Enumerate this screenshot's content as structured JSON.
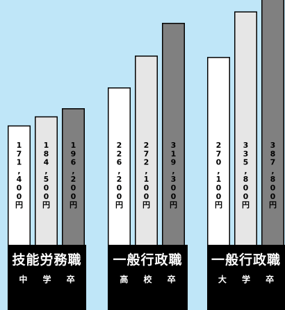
{
  "chart_data": {
    "type": "bar",
    "categories": [
      {
        "title": "技能労務職",
        "subtitle": "中 学 卒"
      },
      {
        "title": "一般行政職",
        "subtitle": "高 校 卒"
      },
      {
        "title": "一般行政職",
        "subtitle": "大 学 卒"
      }
    ],
    "series": [
      {
        "fill": "#ffffff",
        "values": [
          171400,
          226200,
          270100
        ],
        "labels": [
          "171,400円",
          "226,200円",
          "270,100円"
        ]
      },
      {
        "fill": "#e6e6e6",
        "values": [
          184500,
          272100,
          335800
        ],
        "labels": [
          "184,500円",
          "272,100円",
          "335,800円"
        ]
      },
      {
        "fill": "#808080",
        "values": [
          196200,
          319300,
          387800
        ],
        "labels": [
          "196,200円",
          "319,300円",
          "387,800円"
        ]
      }
    ],
    "colors": {
      "background": "#bfe6f8",
      "category_box": "#000000",
      "bar_outline": "#000000"
    }
  }
}
